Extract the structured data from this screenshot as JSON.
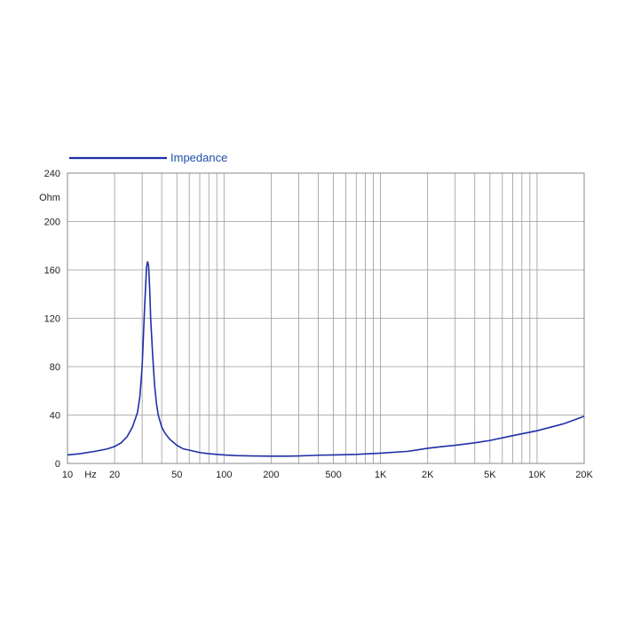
{
  "chart_data": {
    "type": "line",
    "title": "",
    "xlabel": "",
    "ylabel": "",
    "x_scale": "log",
    "xlim": [
      10,
      20000
    ],
    "ylim": [
      0,
      240
    ],
    "y_unit_label": "Ohm",
    "x_unit_label": "Hz",
    "grid": true,
    "legend_position": "top-left",
    "x_tick_labels": [
      {
        "value": 10,
        "label": "10"
      },
      {
        "value": 20,
        "label": "20"
      },
      {
        "value": 50,
        "label": "50"
      },
      {
        "value": 100,
        "label": "100"
      },
      {
        "value": 200,
        "label": "200"
      },
      {
        "value": 500,
        "label": "500"
      },
      {
        "value": 1000,
        "label": "1K"
      },
      {
        "value": 2000,
        "label": "2K"
      },
      {
        "value": 5000,
        "label": "5K"
      },
      {
        "value": 10000,
        "label": "10K"
      },
      {
        "value": 20000,
        "label": "20K"
      }
    ],
    "y_tick_labels": [
      {
        "value": 0,
        "label": "0"
      },
      {
        "value": 40,
        "label": "40"
      },
      {
        "value": 80,
        "label": "80"
      },
      {
        "value": 120,
        "label": "120"
      },
      {
        "value": 160,
        "label": "160"
      },
      {
        "value": 200,
        "label": "200"
      },
      {
        "value": 240,
        "label": "240"
      }
    ],
    "series": [
      {
        "name": "Impedance",
        "color": "#1f2fa8",
        "x": [
          10,
          12,
          15,
          18,
          20,
          22,
          24,
          26,
          28,
          29,
          30,
          31,
          32,
          32.5,
          33,
          33.5,
          34,
          35,
          36,
          37,
          38,
          40,
          42,
          45,
          50,
          55,
          60,
          70,
          80,
          100,
          120,
          150,
          200,
          250,
          300,
          400,
          500,
          700,
          1000,
          1500,
          2000,
          2500,
          3000,
          4000,
          5000,
          7000,
          10000,
          15000,
          20000
        ],
        "y": [
          7,
          8,
          10,
          12,
          14,
          17,
          22,
          30,
          42,
          55,
          80,
          125,
          162,
          167,
          163,
          145,
          120,
          90,
          65,
          50,
          40,
          30,
          25,
          20,
          15,
          12,
          11,
          9,
          8,
          7,
          6.5,
          6.2,
          6,
          6,
          6.2,
          6.8,
          7,
          7.5,
          8.5,
          10,
          12.5,
          14,
          15,
          17,
          19,
          23,
          27,
          33,
          39
        ]
      }
    ]
  }
}
